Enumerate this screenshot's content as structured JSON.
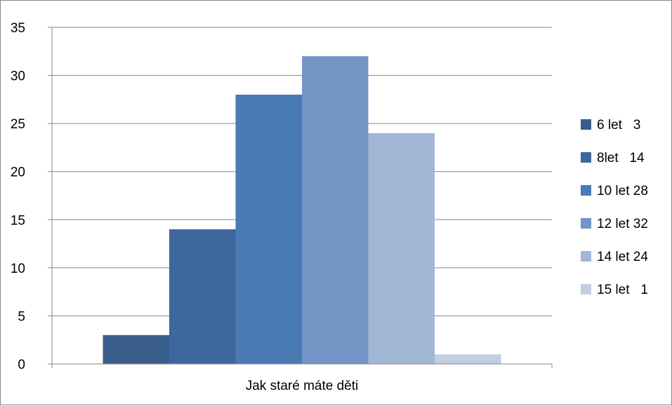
{
  "chart_data": {
    "type": "bar",
    "title": "",
    "xlabel": "",
    "ylabel": "",
    "categories": [
      "Jak staré máte děti"
    ],
    "series": [
      {
        "name": "6 let   3",
        "values": [
          3
        ],
        "color": "#395e8c"
      },
      {
        "name": "8let   14",
        "values": [
          14
        ],
        "color": "#3e679e"
      },
      {
        "name": "10 let 28",
        "values": [
          28
        ],
        "color": "#4a7ab4"
      },
      {
        "name": "12 let 32",
        "values": [
          32
        ],
        "color": "#7496c6"
      },
      {
        "name": "14 let 24",
        "values": [
          24
        ],
        "color": "#a2b6d6"
      },
      {
        "name": "15 let   1",
        "values": [
          1
        ],
        "color": "#c3cee3"
      }
    ],
    "ylim": [
      0,
      35
    ],
    "yticks": [
      0,
      5,
      10,
      15,
      20,
      25,
      30,
      35
    ],
    "grid": true,
    "legend_position": "right"
  }
}
